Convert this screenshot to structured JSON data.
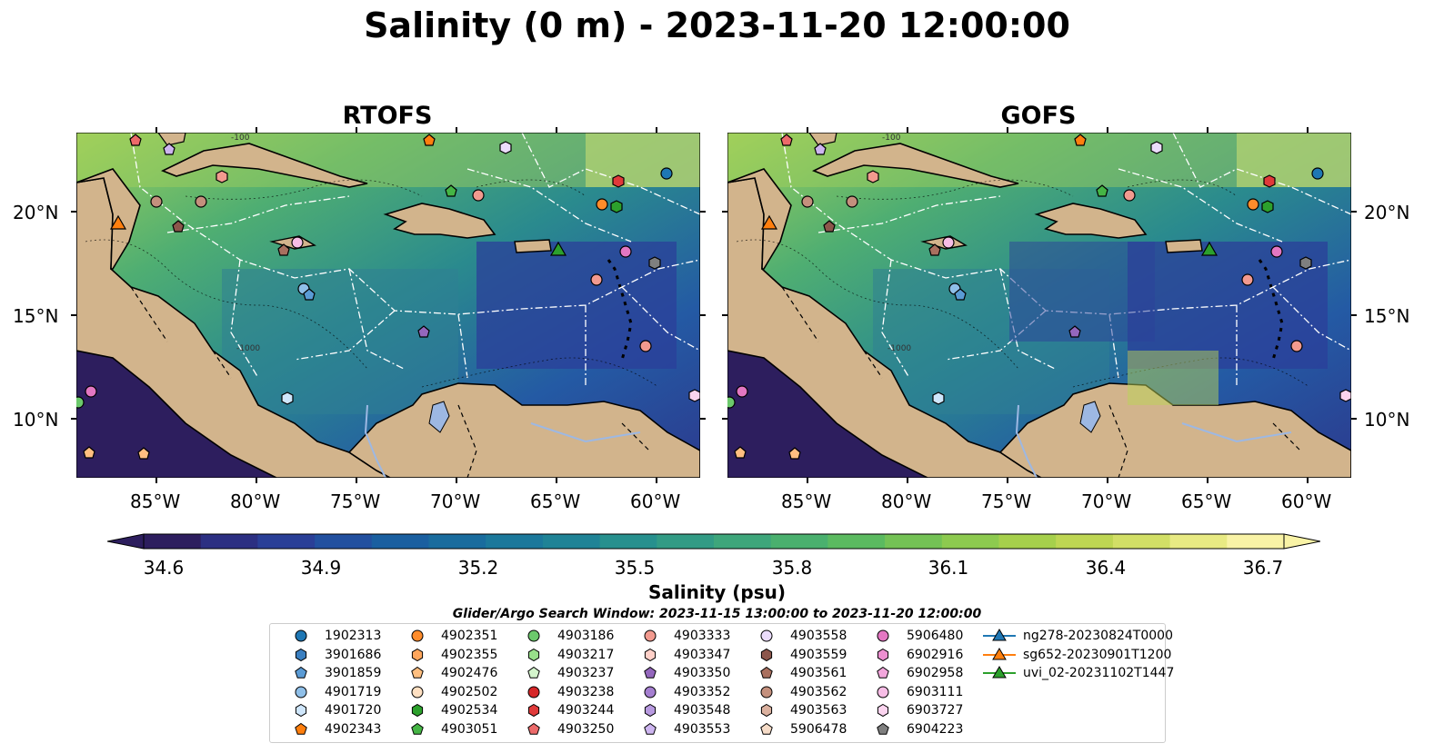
{
  "title": "Salinity (0 m) - 2023-11-20 12:00:00",
  "panels": [
    {
      "title": "RTOFS"
    },
    {
      "title": "GOFS"
    }
  ],
  "axes": {
    "lon_ticks": [
      "85°W",
      "80°W",
      "75°W",
      "70°W",
      "65°W",
      "60°W"
    ],
    "lat_ticks": [
      "20°N",
      "15°N",
      "10°N"
    ],
    "contour_labels": [
      "-100",
      "-1000"
    ]
  },
  "colorbar": {
    "label": "Salinity (psu)",
    "ticks": [
      "34.6",
      "34.9",
      "35.2",
      "35.5",
      "35.8",
      "36.1",
      "36.4",
      "36.7"
    ],
    "colors": [
      "#2d1e5e",
      "#2c2f82",
      "#2a3f97",
      "#22509f",
      "#1a5fa0",
      "#196c9e",
      "#1b789b",
      "#1f8396",
      "#27908e",
      "#329b85",
      "#3ea67b",
      "#4ab06e",
      "#5bba60",
      "#74c255",
      "#8dca4f",
      "#a6d04c",
      "#bed653",
      "#d2df66",
      "#e8ea83",
      "#f9f3a6"
    ],
    "land_color": "#d2b48c",
    "ocean_deep_color": "#2d1e5e"
  },
  "search_window": "Glider/Argo Search Window: 2023-11-15 13:00:00 to 2023-11-20 12:00:00",
  "legend": [
    {
      "label": "1902313",
      "color": "#1f77b4",
      "marker": "circle"
    },
    {
      "label": "3901686",
      "color": "#3a7fc0",
      "marker": "hexagon"
    },
    {
      "label": "3901859",
      "color": "#5a9bd5",
      "marker": "pentagon"
    },
    {
      "label": "4901719",
      "color": "#8fbfe8",
      "marker": "circle"
    },
    {
      "label": "4901720",
      "color": "#cfe6fb",
      "marker": "hexagon"
    },
    {
      "label": "4902343",
      "color": "#ff7f0e",
      "marker": "pentagon"
    },
    {
      "label": "4902351",
      "color": "#ff8c2b",
      "marker": "circle"
    },
    {
      "label": "4902355",
      "color": "#ffa65c",
      "marker": "hexagon"
    },
    {
      "label": "4902476",
      "color": "#ffbf80",
      "marker": "pentagon"
    },
    {
      "label": "4902502",
      "color": "#ffe0c2",
      "marker": "circle"
    },
    {
      "label": "4902534",
      "color": "#2ca02c",
      "marker": "hexagon"
    },
    {
      "label": "4903051",
      "color": "#45b545",
      "marker": "pentagon"
    },
    {
      "label": "4903186",
      "color": "#6cc96c",
      "marker": "circle"
    },
    {
      "label": "4903217",
      "color": "#98df8a",
      "marker": "hexagon"
    },
    {
      "label": "4903237",
      "color": "#d4f5cc",
      "marker": "pentagon"
    },
    {
      "label": "4903238",
      "color": "#d62728",
      "marker": "circle"
    },
    {
      "label": "4903244",
      "color": "#e03a3a",
      "marker": "hexagon"
    },
    {
      "label": "4903250",
      "color": "#ec6a6a",
      "marker": "pentagon"
    },
    {
      "label": "4903333",
      "color": "#f29a8f",
      "marker": "circle"
    },
    {
      "label": "4903347",
      "color": "#ffd0c8",
      "marker": "hexagon"
    },
    {
      "label": "4903350",
      "color": "#9467bd",
      "marker": "pentagon"
    },
    {
      "label": "4903352",
      "color": "#a57fd0",
      "marker": "circle"
    },
    {
      "label": "4903548",
      "color": "#b89ae0",
      "marker": "hexagon"
    },
    {
      "label": "4903553",
      "color": "#cdb5f0",
      "marker": "pentagon"
    },
    {
      "label": "4903558",
      "color": "#ebdcfb",
      "marker": "circle"
    },
    {
      "label": "4903559",
      "color": "#8c564b",
      "marker": "hexagon"
    },
    {
      "label": "4903561",
      "color": "#a9705f",
      "marker": "pentagon"
    },
    {
      "label": "4903562",
      "color": "#c4907d",
      "marker": "circle"
    },
    {
      "label": "4903563",
      "color": "#dbb19f",
      "marker": "hexagon"
    },
    {
      "label": "5906478",
      "color": "#f6dcc8",
      "marker": "pentagon"
    },
    {
      "label": "5906480",
      "color": "#e377c2",
      "marker": "circle"
    },
    {
      "label": "6902916",
      "color": "#ec8fd0",
      "marker": "hexagon"
    },
    {
      "label": "6902958",
      "color": "#f2a6dc",
      "marker": "pentagon"
    },
    {
      "label": "6903111",
      "color": "#f7bde6",
      "marker": "circle"
    },
    {
      "label": "6903727",
      "color": "#fbd4ef",
      "marker": "hexagon"
    },
    {
      "label": "6904223",
      "color": "#7f7f7f",
      "marker": "pentagon"
    },
    {
      "label": "ng278-20230824T0000",
      "color": "#1f77b4",
      "marker": "triangle"
    },
    {
      "label": "sg652-20230901T1200",
      "color": "#ff7f0e",
      "marker": "triangle"
    },
    {
      "label": "uvi_02-20231102T1447",
      "color": "#2ca02c",
      "marker": "triangle"
    }
  ]
}
